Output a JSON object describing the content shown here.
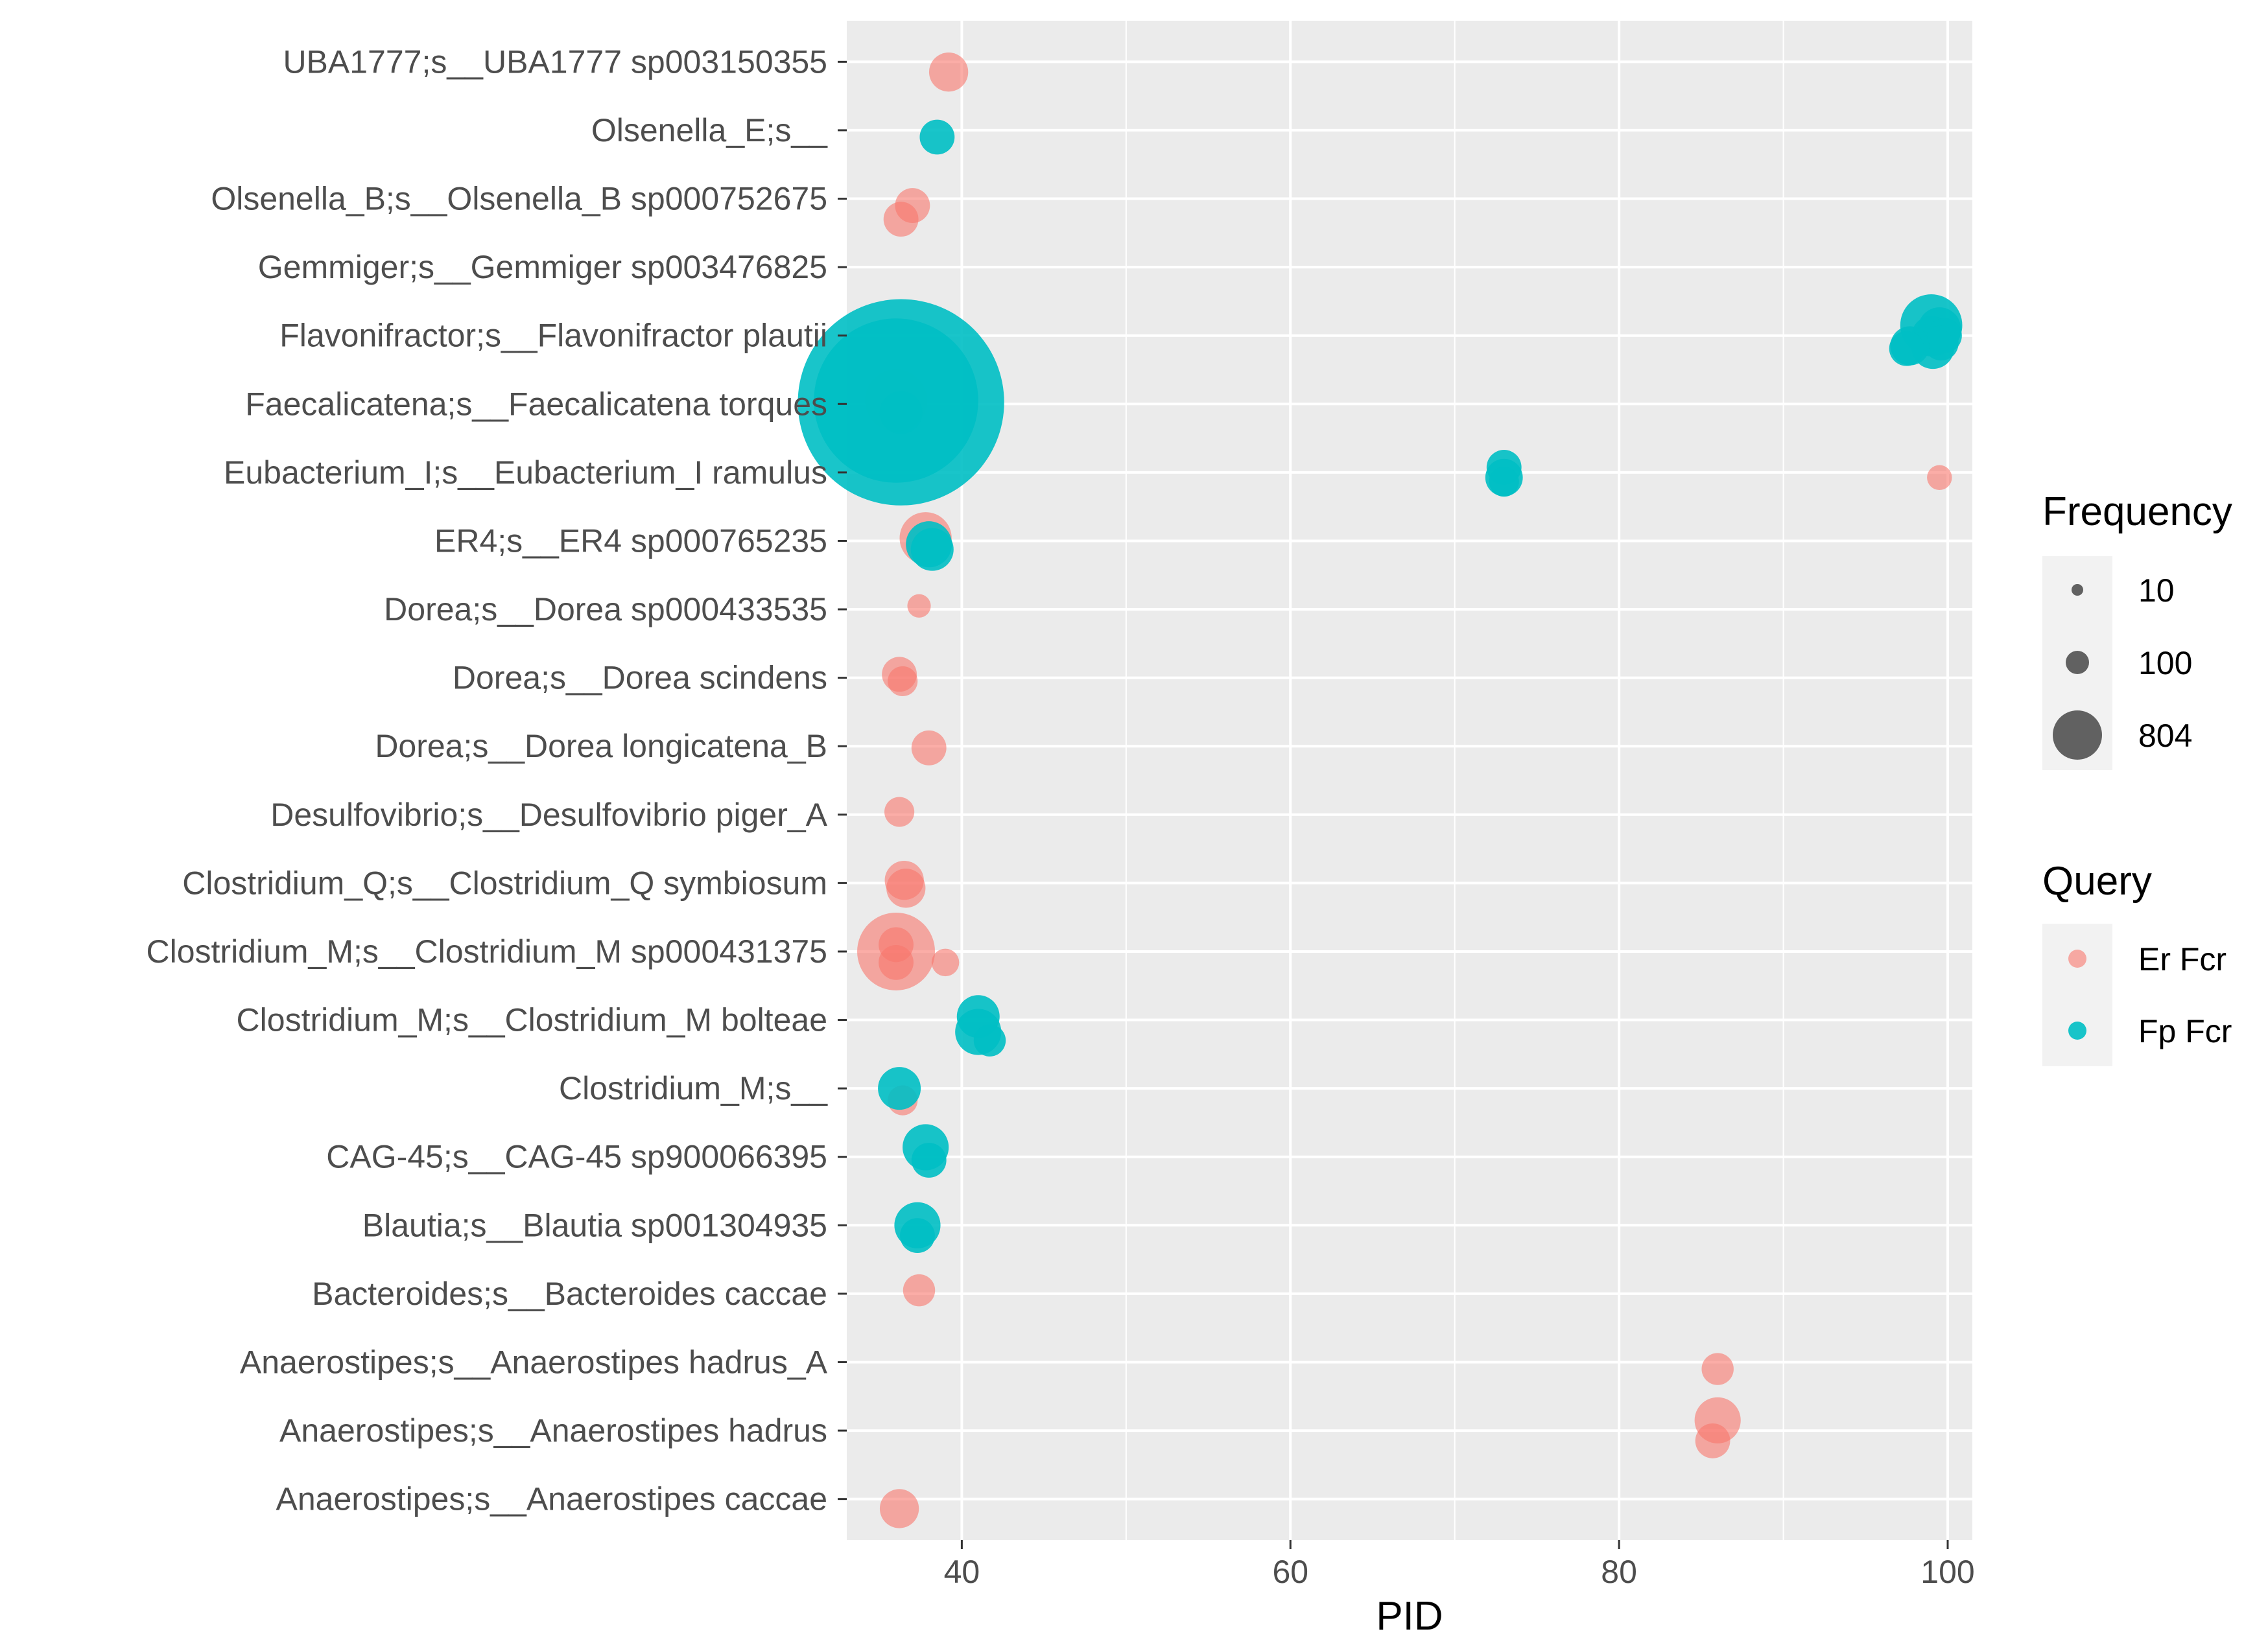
{
  "chart_data": {
    "type": "scatter",
    "xlabel": "PID",
    "ylabel": "",
    "xlim": [
      33,
      101.5
    ],
    "x_ticks": [
      40,
      60,
      80,
      100
    ],
    "categories": [
      "UBA1777;s__UBA1777 sp003150355",
      "Olsenella_E;s__",
      "Olsenella_B;s__Olsenella_B sp000752675",
      "Gemmiger;s__Gemmiger sp003476825",
      "Flavonifractor;s__Flavonifractor plautii",
      "Faecalicatena;s__Faecalicatena torques",
      "Eubacterium_I;s__Eubacterium_I ramulus",
      "ER4;s__ER4 sp000765235",
      "Dorea;s__Dorea sp000433535",
      "Dorea;s__Dorea scindens",
      "Dorea;s__Dorea longicatena_B",
      "Desulfovibrio;s__Desulfovibrio piger_A",
      "Clostridium_Q;s__Clostridium_Q symbiosum",
      "Clostridium_M;s__Clostridium_M sp000431375",
      "Clostridium_M;s__Clostridium_M bolteae",
      "Clostridium_M;s__",
      "CAG-45;s__CAG-45 sp900066395",
      "Blautia;s__Blautia sp001304935",
      "Bacteroides;s__Bacteroides caccae",
      "Anaerostipes;s__Anaerostipes hadrus_A",
      "Anaerostipes;s__Anaerostipes hadrus",
      "Anaerostipes;s__Anaerostipes caccae"
    ],
    "series": [
      {
        "name": "Er Fcr",
        "color": "#F8766D",
        "points": [
          {
            "cat": 0,
            "x": 39.2,
            "jitter": -0.3,
            "freq": 20
          },
          {
            "cat": 2,
            "x": 37.0,
            "jitter": -0.2,
            "freq": 15
          },
          {
            "cat": 2,
            "x": 36.3,
            "jitter": -0.6,
            "freq": 15
          },
          {
            "cat": 5,
            "x": 36.0,
            "jitter": 0.1,
            "freq": 60
          },
          {
            "cat": 6,
            "x": 99.5,
            "jitter": -0.15,
            "freq": 6
          },
          {
            "cat": 7,
            "x": 37.8,
            "jitter": 0.08,
            "freq": 40
          },
          {
            "cat": 8,
            "x": 37.4,
            "jitter": 0.1,
            "freq": 5
          },
          {
            "cat": 9,
            "x": 36.2,
            "jitter": 0.1,
            "freq": 15
          },
          {
            "cat": 9,
            "x": 36.4,
            "jitter": -0.1,
            "freq": 10
          },
          {
            "cat": 10,
            "x": 38.0,
            "jitter": -0.05,
            "freq": 15
          },
          {
            "cat": 11,
            "x": 36.2,
            "jitter": 0.08,
            "freq": 10
          },
          {
            "cat": 12,
            "x": 36.5,
            "jitter": 0.08,
            "freq": 20
          },
          {
            "cat": 12,
            "x": 36.6,
            "jitter": -0.15,
            "freq": 20
          },
          {
            "cat": 13,
            "x": 36.0,
            "jitter": 0.2,
            "freq": 15
          },
          {
            "cat": 13,
            "x": 36.0,
            "jitter": 0.0,
            "freq": 100
          },
          {
            "cat": 13,
            "x": 36.0,
            "jitter": -0.32,
            "freq": 15
          },
          {
            "cat": 13,
            "x": 39.0,
            "jitter": -0.32,
            "freq": 8
          },
          {
            "cat": 15,
            "x": 36.4,
            "jitter": -0.35,
            "freq": 10
          },
          {
            "cat": 18,
            "x": 37.4,
            "jitter": 0.1,
            "freq": 12
          },
          {
            "cat": 19,
            "x": 86.0,
            "jitter": -0.2,
            "freq": 12
          },
          {
            "cat": 20,
            "x": 86.0,
            "jitter": 0.3,
            "freq": 30
          },
          {
            "cat": 20,
            "x": 85.7,
            "jitter": -0.3,
            "freq": 15
          },
          {
            "cat": 21,
            "x": 36.2,
            "jitter": -0.28,
            "freq": 20
          }
        ]
      },
      {
        "name": "Fp Fcr",
        "color": "#00BFC4",
        "points": [
          {
            "cat": 1,
            "x": 38.5,
            "jitter": -0.2,
            "freq": 15
          },
          {
            "cat": 4,
            "x": 99.0,
            "jitter": 0.3,
            "freq": 60
          },
          {
            "cat": 4,
            "x": 99.5,
            "jitter": 0.2,
            "freq": 25
          },
          {
            "cat": 4,
            "x": 99.0,
            "jitter": 0.0,
            "freq": 20
          },
          {
            "cat": 4,
            "x": 99.8,
            "jitter": 0.0,
            "freq": 15
          },
          {
            "cat": 4,
            "x": 99.6,
            "jitter": -0.22,
            "freq": 15
          },
          {
            "cat": 4,
            "x": 99.1,
            "jitter": -0.35,
            "freq": 25
          },
          {
            "cat": 4,
            "x": 97.7,
            "jitter": -0.3,
            "freq": 20
          },
          {
            "cat": 4,
            "x": 97.5,
            "jitter": -0.38,
            "freq": 15
          },
          {
            "cat": 5,
            "x": 36.0,
            "jitter": 0.1,
            "freq": 500
          },
          {
            "cat": 5,
            "x": 36.3,
            "jitter": 0.05,
            "freq": 804
          },
          {
            "cat": 5,
            "x": 36.3,
            "jitter": -0.25,
            "freq": 25
          },
          {
            "cat": 6,
            "x": 73.0,
            "jitter": 0.15,
            "freq": 15
          },
          {
            "cat": 6,
            "x": 73.0,
            "jitter": -0.15,
            "freq": 18
          },
          {
            "cat": 6,
            "x": 73.0,
            "jitter": -0.27,
            "freq": 10
          },
          {
            "cat": 7,
            "x": 38.0,
            "jitter": -0.1,
            "freq": 30
          },
          {
            "cat": 7,
            "x": 38.2,
            "jitter": -0.25,
            "freq": 25
          },
          {
            "cat": 14,
            "x": 41.0,
            "jitter": 0.1,
            "freq": 25
          },
          {
            "cat": 14,
            "x": 41.0,
            "jitter": -0.35,
            "freq": 30
          },
          {
            "cat": 14,
            "x": 41.7,
            "jitter": -0.6,
            "freq": 12
          },
          {
            "cat": 15,
            "x": 36.2,
            "jitter": 0.0,
            "freq": 25
          },
          {
            "cat": 16,
            "x": 37.8,
            "jitter": 0.28,
            "freq": 30
          },
          {
            "cat": 16,
            "x": 38.0,
            "jitter": -0.1,
            "freq": 15
          },
          {
            "cat": 17,
            "x": 37.3,
            "jitter": 0.0,
            "freq": 30
          },
          {
            "cat": 17,
            "x": 37.3,
            "jitter": -0.3,
            "freq": 15
          }
        ]
      }
    ],
    "legend": {
      "size_title": "Frequency",
      "size_breaks": [
        {
          "label": "10",
          "value": 10
        },
        {
          "label": "100",
          "value": 100
        },
        {
          "label": "804",
          "value": 804
        }
      ],
      "color_title": "Query",
      "color_entries": [
        {
          "label": "Er Fcr",
          "color": "#F8766D"
        },
        {
          "label": "Fp Fcr",
          "color": "#00BFC4"
        }
      ],
      "position": "right"
    },
    "panel_background": "#EBEBEB",
    "grid": true
  }
}
